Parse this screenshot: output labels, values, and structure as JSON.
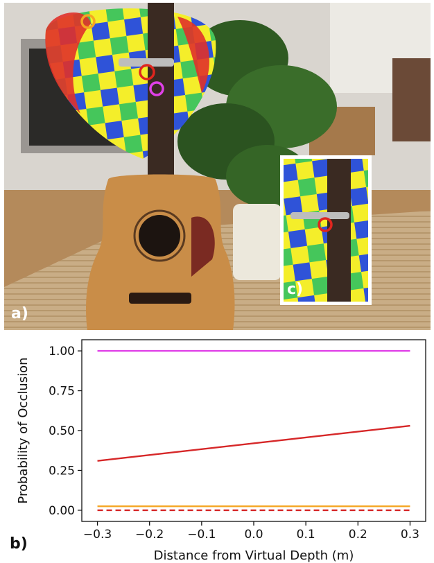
{
  "panels": {
    "a": "a)",
    "b": "b)",
    "c": "c)"
  },
  "chart_data": {
    "type": "line",
    "xlabel": "Distance from Virtual Depth (m)",
    "ylabel": "Probability of Occlusion",
    "xlim": [
      -0.33,
      0.33
    ],
    "ylim": [
      -0.07,
      1.07
    ],
    "xticks": [
      -0.3,
      -0.2,
      -0.1,
      0.0,
      0.1,
      0.2,
      0.3
    ],
    "xtick_labels": [
      "−0.3",
      "−0.2",
      "−0.1",
      "0.0",
      "0.1",
      "0.2",
      "0.3"
    ],
    "yticks": [
      0.0,
      0.25,
      0.5,
      0.75,
      1.0
    ],
    "ytick_labels": [
      "0.00",
      "0.25",
      "0.50",
      "0.75",
      "1.00"
    ],
    "grid": false,
    "series": [
      {
        "color": "#e040e8",
        "style": "solid",
        "x": [
          -0.3,
          0.3
        ],
        "y": [
          1.0,
          1.0
        ]
      },
      {
        "color": "#d62728",
        "style": "solid",
        "x": [
          -0.3,
          0.3
        ],
        "y": [
          0.31,
          0.53
        ]
      },
      {
        "color": "#f5a623",
        "style": "solid",
        "x": [
          -0.3,
          0.3
        ],
        "y": [
          0.025,
          0.025
        ]
      },
      {
        "color": "#d62728",
        "style": "dashed",
        "x": [
          -0.3,
          0.3
        ],
        "y": [
          0.0,
          0.0
        ]
      }
    ]
  }
}
